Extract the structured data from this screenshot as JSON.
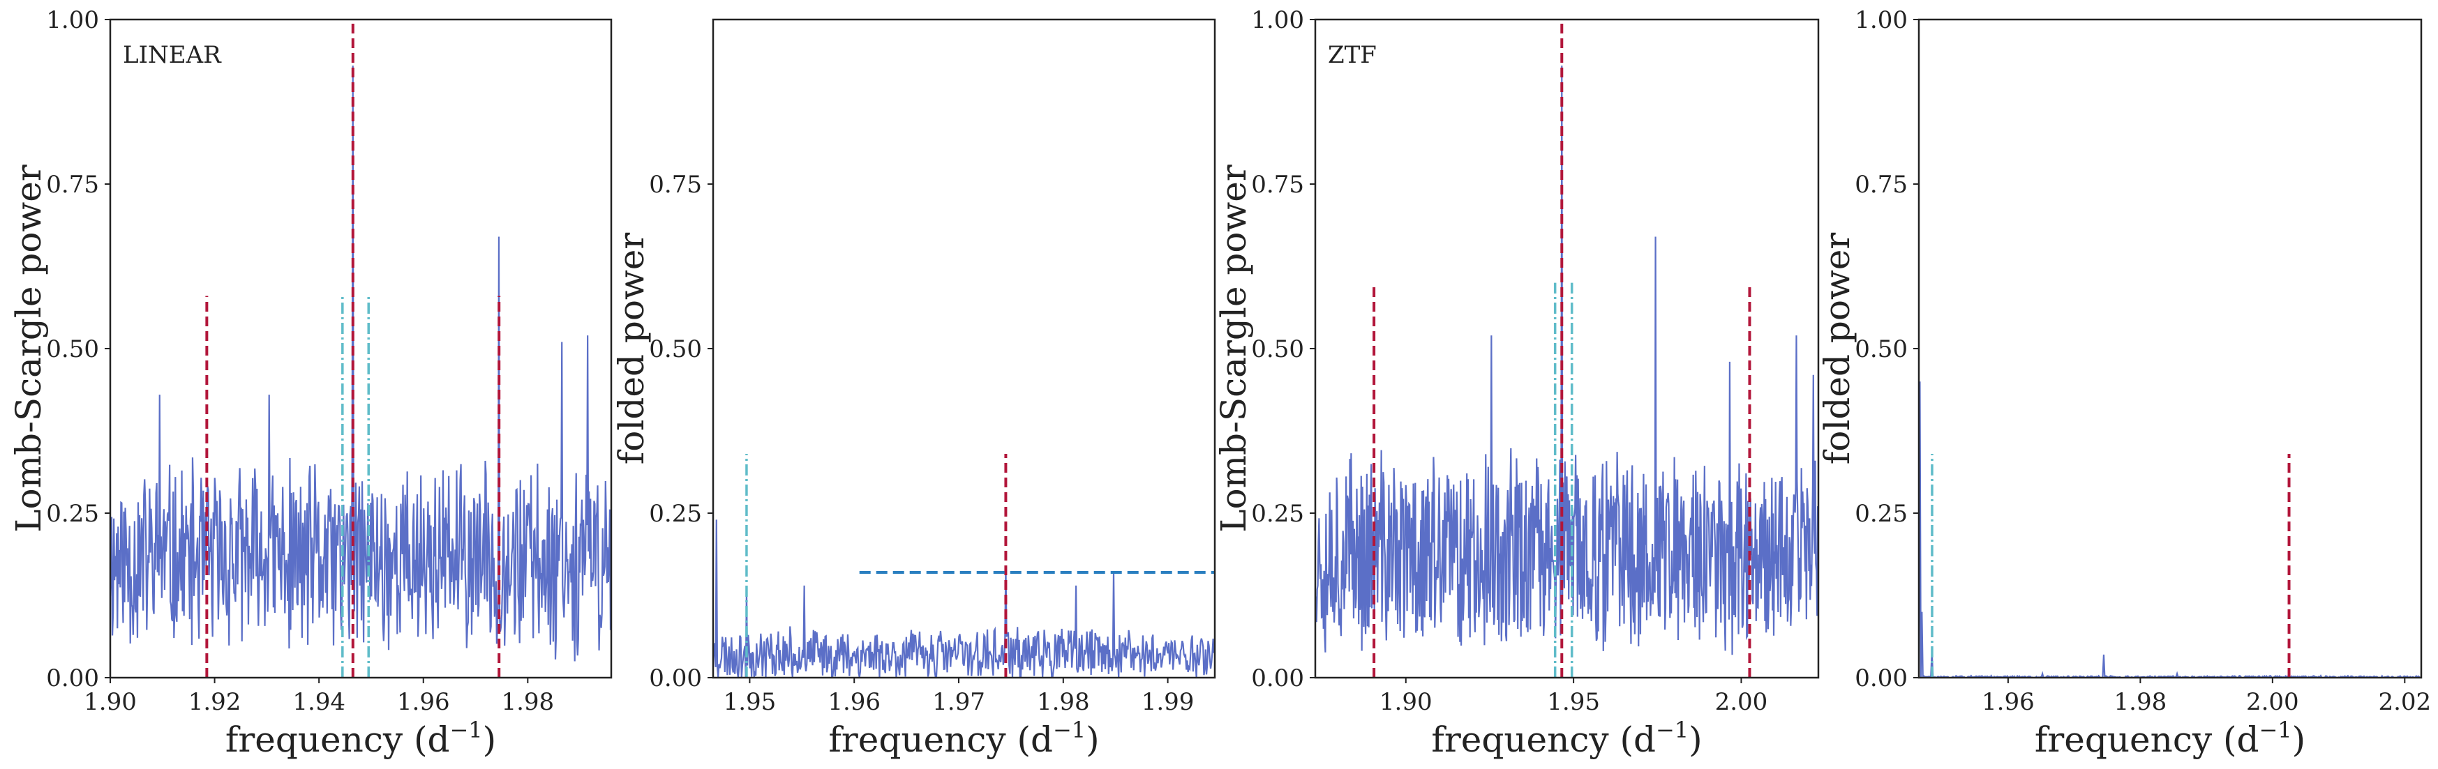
{
  "colors": {
    "periodogram": "#5b6fc7",
    "red_marker": "#b2163a",
    "cyan_marker": "#5fbcc9",
    "threshold": "#2a7fc0"
  },
  "chart_data": [
    {
      "type": "line",
      "panel_label": "LINEAR",
      "xlabel": "frequency (d",
      "xlabel_sup": "−1",
      "xlabel_close": ")",
      "ylabel": "Lomb-Scargle power",
      "xlim": [
        1.9,
        1.996
      ],
      "ylim": [
        0,
        1.0
      ],
      "xticks": [
        1.9,
        1.92,
        1.94,
        1.96,
        1.98
      ],
      "xtick_labels": [
        "1.90",
        "1.92",
        "1.94",
        "1.96",
        "1.98"
      ],
      "yticks": [
        0,
        0.25,
        0.5,
        0.75,
        1.0
      ],
      "ytick_labels": [
        "0.00",
        "0.25",
        "0.50",
        "0.75",
        "1.00"
      ],
      "noise": {
        "base": 0.18,
        "amp": 0.16,
        "seed": 11,
        "n": 700
      },
      "peaks": [
        {
          "x": 1.9465,
          "y": 0.93
        },
        {
          "x": 1.9745,
          "y": 0.67
        },
        {
          "x": 1.9915,
          "y": 0.52
        },
        {
          "x": 1.9865,
          "y": 0.51
        },
        {
          "x": 1.9095,
          "y": 0.43
        },
        {
          "x": 1.9305,
          "y": 0.43
        }
      ],
      "red_lines": [
        {
          "x": 1.9185,
          "y": 0.58
        },
        {
          "x": 1.9465,
          "y": 1.0
        },
        {
          "x": 1.9745,
          "y": 0.58
        }
      ],
      "cyan_lines": [
        {
          "x": 1.9445,
          "y": 0.58
        },
        {
          "x": 1.9495,
          "y": 0.58
        }
      ]
    },
    {
      "type": "line",
      "panel_label": "",
      "xlabel": "frequency (d",
      "xlabel_sup": "−1",
      "xlabel_close": ")",
      "ylabel": "folded power",
      "xlim": [
        1.9465,
        1.9945
      ],
      "ylim": [
        0,
        1.0
      ],
      "xticks": [
        1.95,
        1.96,
        1.97,
        1.98,
        1.99
      ],
      "xtick_labels": [
        "1.95",
        "1.96",
        "1.97",
        "1.98",
        "1.99"
      ],
      "yticks": [
        0,
        0.25,
        0.5,
        0.75
      ],
      "ytick_labels": [
        "0.00",
        "0.25",
        "0.50",
        "0.75"
      ],
      "noise": {
        "base": 0.035,
        "amp": 0.045,
        "seed": 23,
        "n": 600
      },
      "peaks": [
        {
          "x": 1.9468,
          "y": 0.24
        },
        {
          "x": 1.9497,
          "y": 0.13
        },
        {
          "x": 1.9552,
          "y": 0.14
        },
        {
          "x": 1.9745,
          "y": 0.17
        },
        {
          "x": 1.9812,
          "y": 0.14
        },
        {
          "x": 1.9848,
          "y": 0.16
        }
      ],
      "red_lines": [
        {
          "x": 1.9745,
          "y": 0.34
        }
      ],
      "cyan_lines": [
        {
          "x": 1.9497,
          "y": 0.34
        }
      ],
      "threshold": {
        "x0": 1.9605,
        "x1": 1.9945,
        "y": 0.16
      }
    },
    {
      "type": "line",
      "panel_label": "ZTF",
      "xlabel": "frequency (d",
      "xlabel_sup": "−1",
      "xlabel_close": ")",
      "ylabel": "Lomb-Scargle power",
      "xlim": [
        1.873,
        2.023
      ],
      "ylim": [
        0,
        1.0
      ],
      "xticks": [
        1.9,
        1.95,
        2.0
      ],
      "xtick_labels": [
        "1.90",
        "1.95",
        "2.00"
      ],
      "yticks": [
        0,
        0.25,
        0.5,
        0.75,
        1.0
      ],
      "ytick_labels": [
        "0.00",
        "0.25",
        "0.50",
        "0.75",
        "1.00"
      ],
      "noise": {
        "base": 0.19,
        "amp": 0.17,
        "seed": 37,
        "n": 800
      },
      "peaks": [
        {
          "x": 1.9465,
          "y": 0.93
        },
        {
          "x": 1.9745,
          "y": 0.67
        },
        {
          "x": 2.0165,
          "y": 0.52
        },
        {
          "x": 1.9255,
          "y": 0.52
        },
        {
          "x": 2.0215,
          "y": 0.46
        },
        {
          "x": 1.9965,
          "y": 0.48
        }
      ],
      "red_lines": [
        {
          "x": 1.8905,
          "y": 0.6
        },
        {
          "x": 1.9465,
          "y": 1.0
        },
        {
          "x": 2.0025,
          "y": 0.6
        }
      ],
      "cyan_lines": [
        {
          "x": 1.9445,
          "y": 0.6
        },
        {
          "x": 1.9495,
          "y": 0.6
        }
      ]
    },
    {
      "type": "line",
      "panel_label": "",
      "xlabel": "frequency (d",
      "xlabel_sup": "−1",
      "xlabel_close": ")",
      "ylabel": "folded power",
      "xlim": [
        1.9465,
        2.0225
      ],
      "ylim": [
        0,
        1.0
      ],
      "xticks": [
        1.96,
        1.98,
        2.0,
        2.02
      ],
      "xtick_labels": [
        "1.96",
        "1.98",
        "2.00",
        "2.02"
      ],
      "yticks": [
        0,
        0.25,
        0.5,
        0.75,
        1.0
      ],
      "ytick_labels": [
        "0.00",
        "0.25",
        "0.50",
        "0.75",
        "1.00"
      ],
      "noise": {
        "base": 0.001,
        "amp": 0.002,
        "seed": 51,
        "n": 500
      },
      "peaks": [
        {
          "x": 1.9466,
          "y": 0.45
        },
        {
          "x": 1.947,
          "y": 0.1
        },
        {
          "x": 1.9485,
          "y": 0.04
        },
        {
          "x": 1.9745,
          "y": 0.035
        },
        {
          "x": 1.9652,
          "y": 0.006
        },
        {
          "x": 1.9855,
          "y": 0.006
        }
      ],
      "red_lines": [
        {
          "x": 2.0025,
          "y": 0.34
        }
      ],
      "cyan_lines": [
        {
          "x": 1.9485,
          "y": 0.34
        }
      ]
    }
  ]
}
